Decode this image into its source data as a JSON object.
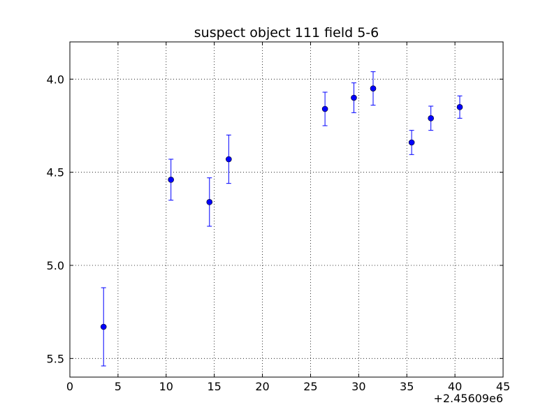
{
  "chart_data": {
    "type": "scatter",
    "title": "suspect object 111 field 5-6",
    "xlabel": "",
    "ylabel": "",
    "x_offset_label": "+2.45609e6",
    "xlim": [
      0,
      45
    ],
    "ylim": [
      5.6,
      3.8
    ],
    "y_inverted": true,
    "grid": true,
    "grid_style": "dotted",
    "x_ticks": [
      0,
      5,
      10,
      15,
      20,
      25,
      30,
      35,
      40,
      45
    ],
    "x_tick_labels": [
      "0",
      "5",
      "10",
      "15",
      "20",
      "25",
      "30",
      "35",
      "40",
      "45"
    ],
    "y_ticks": [
      4.0,
      4.5,
      5.0,
      5.5
    ],
    "y_tick_labels": [
      "4.0",
      "4.5",
      "5.0",
      "5.5"
    ],
    "marker": "circle",
    "color": "#0000ff",
    "series": [
      {
        "x": [
          3.5,
          10.5,
          14.5,
          16.5,
          26.5,
          29.5,
          31.5,
          35.5,
          37.5,
          40.5
        ],
        "y": [
          5.33,
          4.54,
          4.66,
          4.43,
          4.16,
          4.1,
          4.05,
          4.34,
          4.21,
          4.15
        ],
        "yerr": [
          0.21,
          0.11,
          0.13,
          0.13,
          0.09,
          0.08,
          0.09,
          0.065,
          0.065,
          0.06
        ]
      }
    ]
  }
}
